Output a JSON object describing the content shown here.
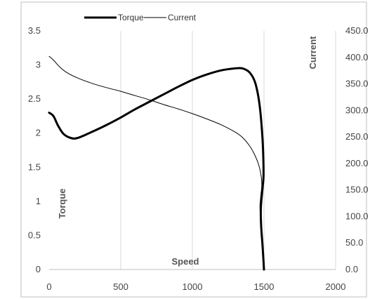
{
  "chart_data": {
    "type": "line",
    "xlabel": "Speed",
    "ylabel": "Torque",
    "y2label": "Current",
    "xlim": [
      0,
      2000
    ],
    "ylim": [
      0,
      3.5
    ],
    "y2lim": [
      0,
      450
    ],
    "x_ticks": [
      "0",
      "500",
      "1000",
      "1500",
      "2000"
    ],
    "y_ticks": [
      "0",
      "0.5",
      "1",
      "1.5",
      "2",
      "2.5",
      "3",
      "3.5"
    ],
    "y2_ticks": [
      "0.0",
      "50.0",
      "100.0",
      "150.0",
      "200.0",
      "250.0",
      "300.0",
      "350.0",
      "400.0",
      "450.0"
    ],
    "grid": "vertical",
    "legend": "top",
    "series": [
      {
        "name": "Torque",
        "axis": "left",
        "color": "#000000",
        "line": "thick",
        "points": [
          [
            0,
            2.3
          ],
          [
            30,
            2.25
          ],
          [
            60,
            2.12
          ],
          [
            100,
            1.99
          ],
          [
            150,
            1.93
          ],
          [
            200,
            1.93
          ],
          [
            300,
            2.02
          ],
          [
            400,
            2.12
          ],
          [
            500,
            2.23
          ],
          [
            600,
            2.35
          ],
          [
            700,
            2.46
          ],
          [
            800,
            2.57
          ],
          [
            900,
            2.68
          ],
          [
            1000,
            2.78
          ],
          [
            1100,
            2.86
          ],
          [
            1200,
            2.92
          ],
          [
            1300,
            2.95
          ],
          [
            1350,
            2.95
          ],
          [
            1400,
            2.89
          ],
          [
            1440,
            2.73
          ],
          [
            1470,
            2.4
          ],
          [
            1490,
            1.9
          ],
          [
            1497,
            1.4
          ],
          [
            1490,
            1.2
          ],
          [
            1478,
            0.9
          ],
          [
            1480,
            0.65
          ],
          [
            1488,
            0.4
          ],
          [
            1495,
            0.18
          ],
          [
            1500,
            0
          ]
        ]
      },
      {
        "name": "Current",
        "axis": "right",
        "color": "#000000",
        "line": "thin",
        "points": [
          [
            0,
            402
          ],
          [
            30,
            395
          ],
          [
            70,
            383
          ],
          [
            120,
            372
          ],
          [
            200,
            361
          ],
          [
            300,
            351
          ],
          [
            400,
            343
          ],
          [
            500,
            336
          ],
          [
            600,
            328
          ],
          [
            700,
            320
          ],
          [
            800,
            311
          ],
          [
            900,
            303
          ],
          [
            1000,
            294
          ],
          [
            1100,
            284
          ],
          [
            1200,
            273
          ],
          [
            1300,
            259
          ],
          [
            1350,
            249
          ],
          [
            1400,
            233
          ],
          [
            1430,
            219
          ],
          [
            1460,
            200
          ],
          [
            1478,
            180
          ],
          [
            1485,
            160
          ],
          [
            1478,
            140
          ],
          [
            1472,
            120
          ],
          [
            1475,
            100
          ],
          [
            1480,
            80
          ],
          [
            1488,
            55
          ],
          [
            1494,
            30
          ],
          [
            1500,
            0
          ]
        ]
      }
    ]
  }
}
